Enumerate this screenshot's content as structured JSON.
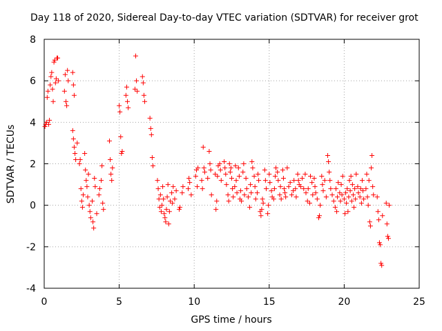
{
  "chart_data": {
    "type": "scatter",
    "title": "Day 118 of 2020, Sidereal Day-to-day VTEC variation (SDTVAR) for receiver grot",
    "xlabel": "GPS time / hours",
    "ylabel": "SDTVAR / TECUs",
    "xlim": [
      0,
      25
    ],
    "ylim": [
      -4,
      8
    ],
    "xticks": [
      0,
      5,
      10,
      15,
      20,
      25
    ],
    "yticks": [
      -4,
      -2,
      0,
      2,
      4,
      6,
      8
    ],
    "grid": true,
    "marker": "+",
    "color": "#ff0000",
    "series": [
      {
        "name": "SDTVAR",
        "points": [
          [
            0.05,
            3.8
          ],
          [
            0.1,
            3.9
          ],
          [
            0.15,
            4.0
          ],
          [
            0.2,
            5.2
          ],
          [
            0.25,
            5.5
          ],
          [
            0.3,
            3.9
          ],
          [
            0.35,
            4.1
          ],
          [
            0.4,
            5.8
          ],
          [
            0.45,
            6.2
          ],
          [
            0.5,
            6.4
          ],
          [
            0.55,
            5.6
          ],
          [
            0.6,
            5.0
          ],
          [
            0.65,
            6.9
          ],
          [
            0.7,
            7.0
          ],
          [
            0.75,
            5.9
          ],
          [
            0.8,
            6.1
          ],
          [
            0.85,
            7.1
          ],
          [
            0.9,
            7.1
          ],
          [
            0.95,
            6.0
          ],
          [
            1.35,
            5.5
          ],
          [
            1.4,
            6.3
          ],
          [
            1.45,
            5.0
          ],
          [
            1.5,
            4.8
          ],
          [
            1.55,
            6.5
          ],
          [
            1.6,
            6.0
          ],
          [
            1.9,
            6.4
          ],
          [
            1.95,
            5.8
          ],
          [
            2.0,
            5.3
          ],
          [
            1.9,
            3.6
          ],
          [
            1.95,
            3.2
          ],
          [
            2.0,
            2.8
          ],
          [
            2.05,
            2.5
          ],
          [
            2.1,
            2.2
          ],
          [
            2.2,
            3.0
          ],
          [
            2.35,
            2.0
          ],
          [
            2.4,
            2.2
          ],
          [
            2.45,
            0.8
          ],
          [
            2.5,
            0.2
          ],
          [
            2.55,
            -0.1
          ],
          [
            2.6,
            0.5
          ],
          [
            2.7,
            2.5
          ],
          [
            2.75,
            1.7
          ],
          [
            2.8,
            1.2
          ],
          [
            2.85,
            0.9
          ],
          [
            2.9,
            0.4
          ],
          [
            2.95,
            1.5
          ],
          [
            3.0,
            0.0
          ],
          [
            3.05,
            -0.3
          ],
          [
            3.1,
            -0.6
          ],
          [
            3.2,
            0.2
          ],
          [
            3.25,
            -0.8
          ],
          [
            3.3,
            -1.1
          ],
          [
            3.35,
            1.3
          ],
          [
            3.4,
            0.9
          ],
          [
            3.5,
            -0.4
          ],
          [
            3.65,
            0.5
          ],
          [
            3.7,
            0.8
          ],
          [
            3.8,
            1.2
          ],
          [
            3.85,
            1.9
          ],
          [
            3.9,
            0.1
          ],
          [
            3.95,
            -0.2
          ],
          [
            4.35,
            3.1
          ],
          [
            4.4,
            2.2
          ],
          [
            4.45,
            1.5
          ],
          [
            4.5,
            1.2
          ],
          [
            4.55,
            1.8
          ],
          [
            5.0,
            4.8
          ],
          [
            5.05,
            4.5
          ],
          [
            5.1,
            3.3
          ],
          [
            5.15,
            2.5
          ],
          [
            5.2,
            2.6
          ],
          [
            5.45,
            5.3
          ],
          [
            5.5,
            5.7
          ],
          [
            5.55,
            5.0
          ],
          [
            5.6,
            4.7
          ],
          [
            6.05,
            5.6
          ],
          [
            6.1,
            7.2
          ],
          [
            6.15,
            6.0
          ],
          [
            6.2,
            5.5
          ],
          [
            6.55,
            6.2
          ],
          [
            6.6,
            5.9
          ],
          [
            6.65,
            5.3
          ],
          [
            6.7,
            5.0
          ],
          [
            7.05,
            4.2
          ],
          [
            7.1,
            3.7
          ],
          [
            7.15,
            3.4
          ],
          [
            7.2,
            2.3
          ],
          [
            7.25,
            1.9
          ],
          [
            7.55,
            1.2
          ],
          [
            7.6,
            0.8
          ],
          [
            7.65,
            0.3
          ],
          [
            7.7,
            -0.1
          ],
          [
            7.75,
            0.5
          ],
          [
            7.8,
            -0.3
          ],
          [
            7.85,
            0.0
          ],
          [
            7.9,
            0.9
          ],
          [
            7.95,
            0.3
          ],
          [
            8.0,
            -0.4
          ],
          [
            8.05,
            -0.6
          ],
          [
            8.1,
            -0.8
          ],
          [
            8.15,
            -0.2
          ],
          [
            8.2,
            0.4
          ],
          [
            8.25,
            1.0
          ],
          [
            8.3,
            -0.9
          ],
          [
            8.35,
            -0.3
          ],
          [
            8.4,
            0.2
          ],
          [
            8.5,
            0.6
          ],
          [
            8.55,
            0.1
          ],
          [
            8.6,
            0.9
          ],
          [
            8.7,
            0.3
          ],
          [
            8.8,
            0.7
          ],
          [
            9.0,
            -0.2
          ],
          [
            9.05,
            -0.1
          ],
          [
            9.2,
            0.6
          ],
          [
            9.25,
            0.9
          ],
          [
            9.6,
            0.8
          ],
          [
            9.65,
            1.3
          ],
          [
            9.7,
            1.1
          ],
          [
            9.8,
            0.5
          ],
          [
            10.1,
            1.4
          ],
          [
            10.15,
            1.7
          ],
          [
            10.2,
            0.9
          ],
          [
            10.25,
            1.8
          ],
          [
            10.5,
            1.2
          ],
          [
            10.55,
            0.8
          ],
          [
            10.6,
            2.8
          ],
          [
            10.65,
            1.8
          ],
          [
            10.7,
            1.6
          ],
          [
            10.9,
            1.3
          ],
          [
            11.0,
            2.6
          ],
          [
            11.05,
            2.0
          ],
          [
            11.1,
            1.7
          ],
          [
            11.15,
            0.5
          ],
          [
            11.4,
            1.5
          ],
          [
            11.45,
            -0.2
          ],
          [
            11.5,
            0.2
          ],
          [
            11.55,
            1.4
          ],
          [
            11.6,
            1.9
          ],
          [
            11.7,
            2.0
          ],
          [
            11.75,
            1.7
          ],
          [
            11.8,
            1.2
          ],
          [
            12.0,
            2.1
          ],
          [
            12.05,
            1.8
          ],
          [
            12.1,
            1.5
          ],
          [
            12.15,
            1.0
          ],
          [
            12.25,
            0.5
          ],
          [
            12.3,
            0.2
          ],
          [
            12.35,
            2.0
          ],
          [
            12.4,
            1.6
          ],
          [
            12.45,
            1.8
          ],
          [
            12.5,
            1.3
          ],
          [
            12.55,
            0.8
          ],
          [
            12.6,
            0.4
          ],
          [
            12.7,
            0.9
          ],
          [
            12.75,
            1.9
          ],
          [
            12.8,
            1.2
          ],
          [
            12.85,
            0.6
          ],
          [
            12.95,
            1.8
          ],
          [
            13.0,
            1.4
          ],
          [
            13.05,
            0.3
          ],
          [
            13.1,
            0.7
          ],
          [
            13.15,
            0.2
          ],
          [
            13.25,
            1.6
          ],
          [
            13.3,
            2.0
          ],
          [
            13.35,
            0.5
          ],
          [
            13.45,
            1.3
          ],
          [
            13.5,
            0.8
          ],
          [
            13.6,
            0.4
          ],
          [
            13.7,
            -0.1
          ],
          [
            13.75,
            1.0
          ],
          [
            13.8,
            0.6
          ],
          [
            13.85,
            2.1
          ],
          [
            13.9,
            1.8
          ],
          [
            14.0,
            1.4
          ],
          [
            14.05,
            0.9
          ],
          [
            14.1,
            0.3
          ],
          [
            14.2,
            0.6
          ],
          [
            14.25,
            1.5
          ],
          [
            14.3,
            1.2
          ],
          [
            14.4,
            -0.3
          ],
          [
            14.45,
            -0.5
          ],
          [
            14.5,
            -0.2
          ],
          [
            14.55,
            0.3
          ],
          [
            14.6,
            0.1
          ],
          [
            14.7,
            1.7
          ],
          [
            14.75,
            1.2
          ],
          [
            14.8,
            0.8
          ],
          [
            14.9,
            -0.4
          ],
          [
            14.95,
            0.0
          ],
          [
            15.0,
            1.5
          ],
          [
            15.05,
            1.1
          ],
          [
            15.15,
            0.7
          ],
          [
            15.2,
            0.4
          ],
          [
            15.3,
            0.3
          ],
          [
            15.35,
            0.8
          ],
          [
            15.4,
            1.4
          ],
          [
            15.45,
            1.8
          ],
          [
            15.55,
            1.6
          ],
          [
            15.6,
            1.2
          ],
          [
            15.7,
            0.5
          ],
          [
            15.75,
            0.9
          ],
          [
            15.8,
            0.3
          ],
          [
            15.9,
            1.7
          ],
          [
            15.95,
            1.3
          ],
          [
            16.0,
            0.8
          ],
          [
            16.05,
            0.6
          ],
          [
            16.1,
            0.4
          ],
          [
            16.2,
            1.8
          ],
          [
            16.3,
            0.9
          ],
          [
            16.4,
            1.1
          ],
          [
            16.5,
            0.5
          ],
          [
            16.6,
            0.7
          ],
          [
            16.65,
            1.2
          ],
          [
            16.75,
            0.8
          ],
          [
            16.8,
            0.4
          ],
          [
            16.9,
            1.5
          ],
          [
            16.95,
            1.2
          ],
          [
            17.0,
            1.0
          ],
          [
            17.1,
            0.9
          ],
          [
            17.2,
            1.3
          ],
          [
            17.3,
            0.8
          ],
          [
            17.4,
            1.5
          ],
          [
            17.45,
            0.6
          ],
          [
            17.55,
            0.2
          ],
          [
            17.6,
            0.8
          ],
          [
            17.7,
            0.1
          ],
          [
            17.75,
            1.4
          ],
          [
            17.85,
            1.1
          ],
          [
            17.9,
            0.5
          ],
          [
            18.0,
            1.3
          ],
          [
            18.05,
            0.9
          ],
          [
            18.1,
            0.6
          ],
          [
            18.2,
            0.3
          ],
          [
            18.3,
            -0.6
          ],
          [
            18.35,
            -0.5
          ],
          [
            18.4,
            0.0
          ],
          [
            18.5,
            1.4
          ],
          [
            18.55,
            1.0
          ],
          [
            18.6,
            0.7
          ],
          [
            18.7,
            1.2
          ],
          [
            18.8,
            0.4
          ],
          [
            18.9,
            2.4
          ],
          [
            18.95,
            2.1
          ],
          [
            19.0,
            1.6
          ],
          [
            19.05,
            1.2
          ],
          [
            19.1,
            0.8
          ],
          [
            19.2,
            0.5
          ],
          [
            19.3,
            0.2
          ],
          [
            19.4,
            -0.1
          ],
          [
            19.45,
            0.8
          ],
          [
            19.5,
            -0.3
          ],
          [
            19.55,
            0.4
          ],
          [
            19.6,
            1.1
          ],
          [
            19.7,
            0.6
          ],
          [
            19.75,
            0.2
          ],
          [
            19.8,
            1.0
          ],
          [
            19.85,
            0.5
          ],
          [
            19.9,
            1.4
          ],
          [
            20.0,
            0.3
          ],
          [
            20.05,
            -0.4
          ],
          [
            20.1,
            0.6
          ],
          [
            20.15,
            0.1
          ],
          [
            20.2,
            0.8
          ],
          [
            20.25,
            -0.3
          ],
          [
            20.3,
            0.4
          ],
          [
            20.35,
            1.2
          ],
          [
            20.4,
            0.7
          ],
          [
            20.45,
            1.4
          ],
          [
            20.5,
            0.2
          ],
          [
            20.55,
            1.0
          ],
          [
            20.6,
            0.5
          ],
          [
            20.65,
            -0.1
          ],
          [
            20.7,
            0.8
          ],
          [
            20.75,
            0.3
          ],
          [
            20.8,
            1.5
          ],
          [
            20.9,
            0.9
          ],
          [
            20.95,
            0.6
          ],
          [
            21.05,
            0.4
          ],
          [
            21.1,
            0.8
          ],
          [
            21.15,
            0.1
          ],
          [
            21.2,
            1.2
          ],
          [
            21.25,
            0.7
          ],
          [
            21.3,
            0.3
          ],
          [
            21.45,
            0.8
          ],
          [
            21.5,
            1.5
          ],
          [
            21.55,
            0.4
          ],
          [
            21.6,
            0.0
          ],
          [
            21.65,
            1.2
          ],
          [
            21.7,
            -0.8
          ],
          [
            21.75,
            -1.0
          ],
          [
            21.8,
            1.8
          ],
          [
            21.85,
            2.4
          ],
          [
            21.9,
            0.9
          ],
          [
            21.95,
            0.5
          ],
          [
            22.2,
            0.4
          ],
          [
            22.25,
            -0.3
          ],
          [
            22.3,
            -0.7
          ],
          [
            22.35,
            -1.8
          ],
          [
            22.4,
            -1.9
          ],
          [
            22.45,
            -2.8
          ],
          [
            22.5,
            -2.9
          ],
          [
            22.55,
            -0.5
          ],
          [
            22.8,
            0.1
          ],
          [
            22.85,
            -0.9
          ],
          [
            22.9,
            -1.5
          ],
          [
            22.95,
            -1.6
          ],
          [
            23.0,
            0.0
          ]
        ]
      }
    ]
  }
}
